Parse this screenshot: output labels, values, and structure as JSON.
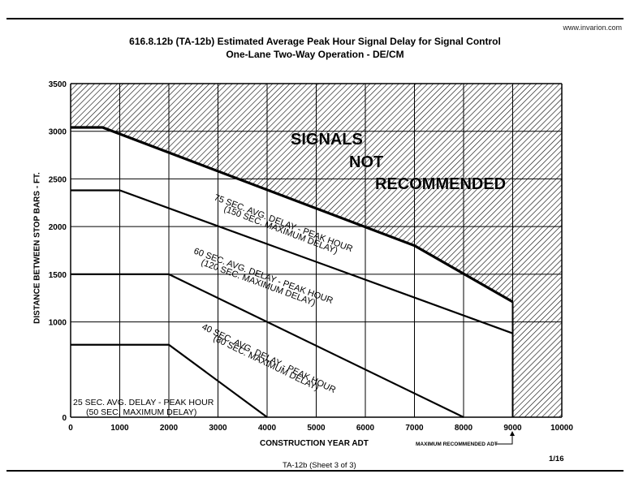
{
  "header": {
    "watermark": "www.invarion.com",
    "title_line1": "616.8.12b (TA-12b) Estimated Average Peak Hour Signal Delay for Signal Control",
    "title_line2": "One-Lane Two-Way Operation - DE/CM"
  },
  "footer": {
    "sheet": "TA-12b  (Sheet 3 of 3)",
    "page": "1/16"
  },
  "chart_data": {
    "type": "line",
    "title": "616.8.12b (TA-12b) Estimated Average Peak Hour Signal Delay for Signal Control — One-Lane Two-Way Operation - DE/CM",
    "xlabel": "CONSTRUCTION YEAR ADT",
    "ylabel": "DISTANCE BETWEEN STOP BARS - FT.",
    "xlim": [
      0,
      10000
    ],
    "ylim": [
      0,
      3500
    ],
    "grid": true,
    "x_ticks": [
      "0",
      "1000",
      "2000",
      "3000",
      "4000",
      "5000",
      "6000",
      "7000",
      "8000",
      "9000",
      "10000"
    ],
    "y_ticks": [
      "0",
      "1000",
      "1500",
      "2000",
      "2500",
      "3000",
      "3500"
    ],
    "series": [
      {
        "name": "75 SEC. AVG. DELAY - PEAK HOUR (150 SEC. MAXIMUM DELAY)",
        "label1": "75 SEC. AVG. DELAY - PEAK HOUR",
        "label2": "(150 SEC. MAXIMUM DELAY)",
        "points": [
          [
            0,
            3040
          ],
          [
            650,
            3040
          ],
          [
            7000,
            1800
          ],
          [
            9000,
            1210
          ]
        ]
      },
      {
        "name": "60 SEC. AVG. DELAY - PEAK HOUR (120 SEC. MAXIMUM DELAY)",
        "label1": "60 SEC. AVG. DELAY - PEAK HOUR",
        "label2": "(120 SEC. MAXIMUM DELAY)",
        "points": [
          [
            0,
            2380
          ],
          [
            1000,
            2380
          ],
          [
            9000,
            880
          ]
        ]
      },
      {
        "name": "40 SEC. AVG. DELAY - PEAK HOUR (80 SEC. MAXIMUM DELAY)",
        "label1": "40 SEC. AVG. DELAY - PEAK HOUR",
        "label2": "(80 SEC. MAXIMUM DELAY)",
        "points": [
          [
            0,
            1500
          ],
          [
            2000,
            1500
          ],
          [
            8000,
            0
          ]
        ]
      },
      {
        "name": "25 SEC. AVG. DELAY - PEAK HOUR (50 SEC. MAXIMUM DELAY)",
        "label1": "25 SEC. AVG. DELAY - PEAK HOUR",
        "label2": "(50 SEC. MAXIMUM DELAY)",
        "points": [
          [
            0,
            760
          ],
          [
            2000,
            760
          ],
          [
            4000,
            0
          ]
        ]
      }
    ],
    "annotations": {
      "hatched_region": "SIGNALS NOT RECOMMENDED",
      "signals_words": [
        "SIGNALS",
        "NOT",
        "RECOMMENDED"
      ],
      "max_adt_label": "MAXIMUM RECOMMENDED ADT",
      "max_adt_value": 9000
    }
  }
}
